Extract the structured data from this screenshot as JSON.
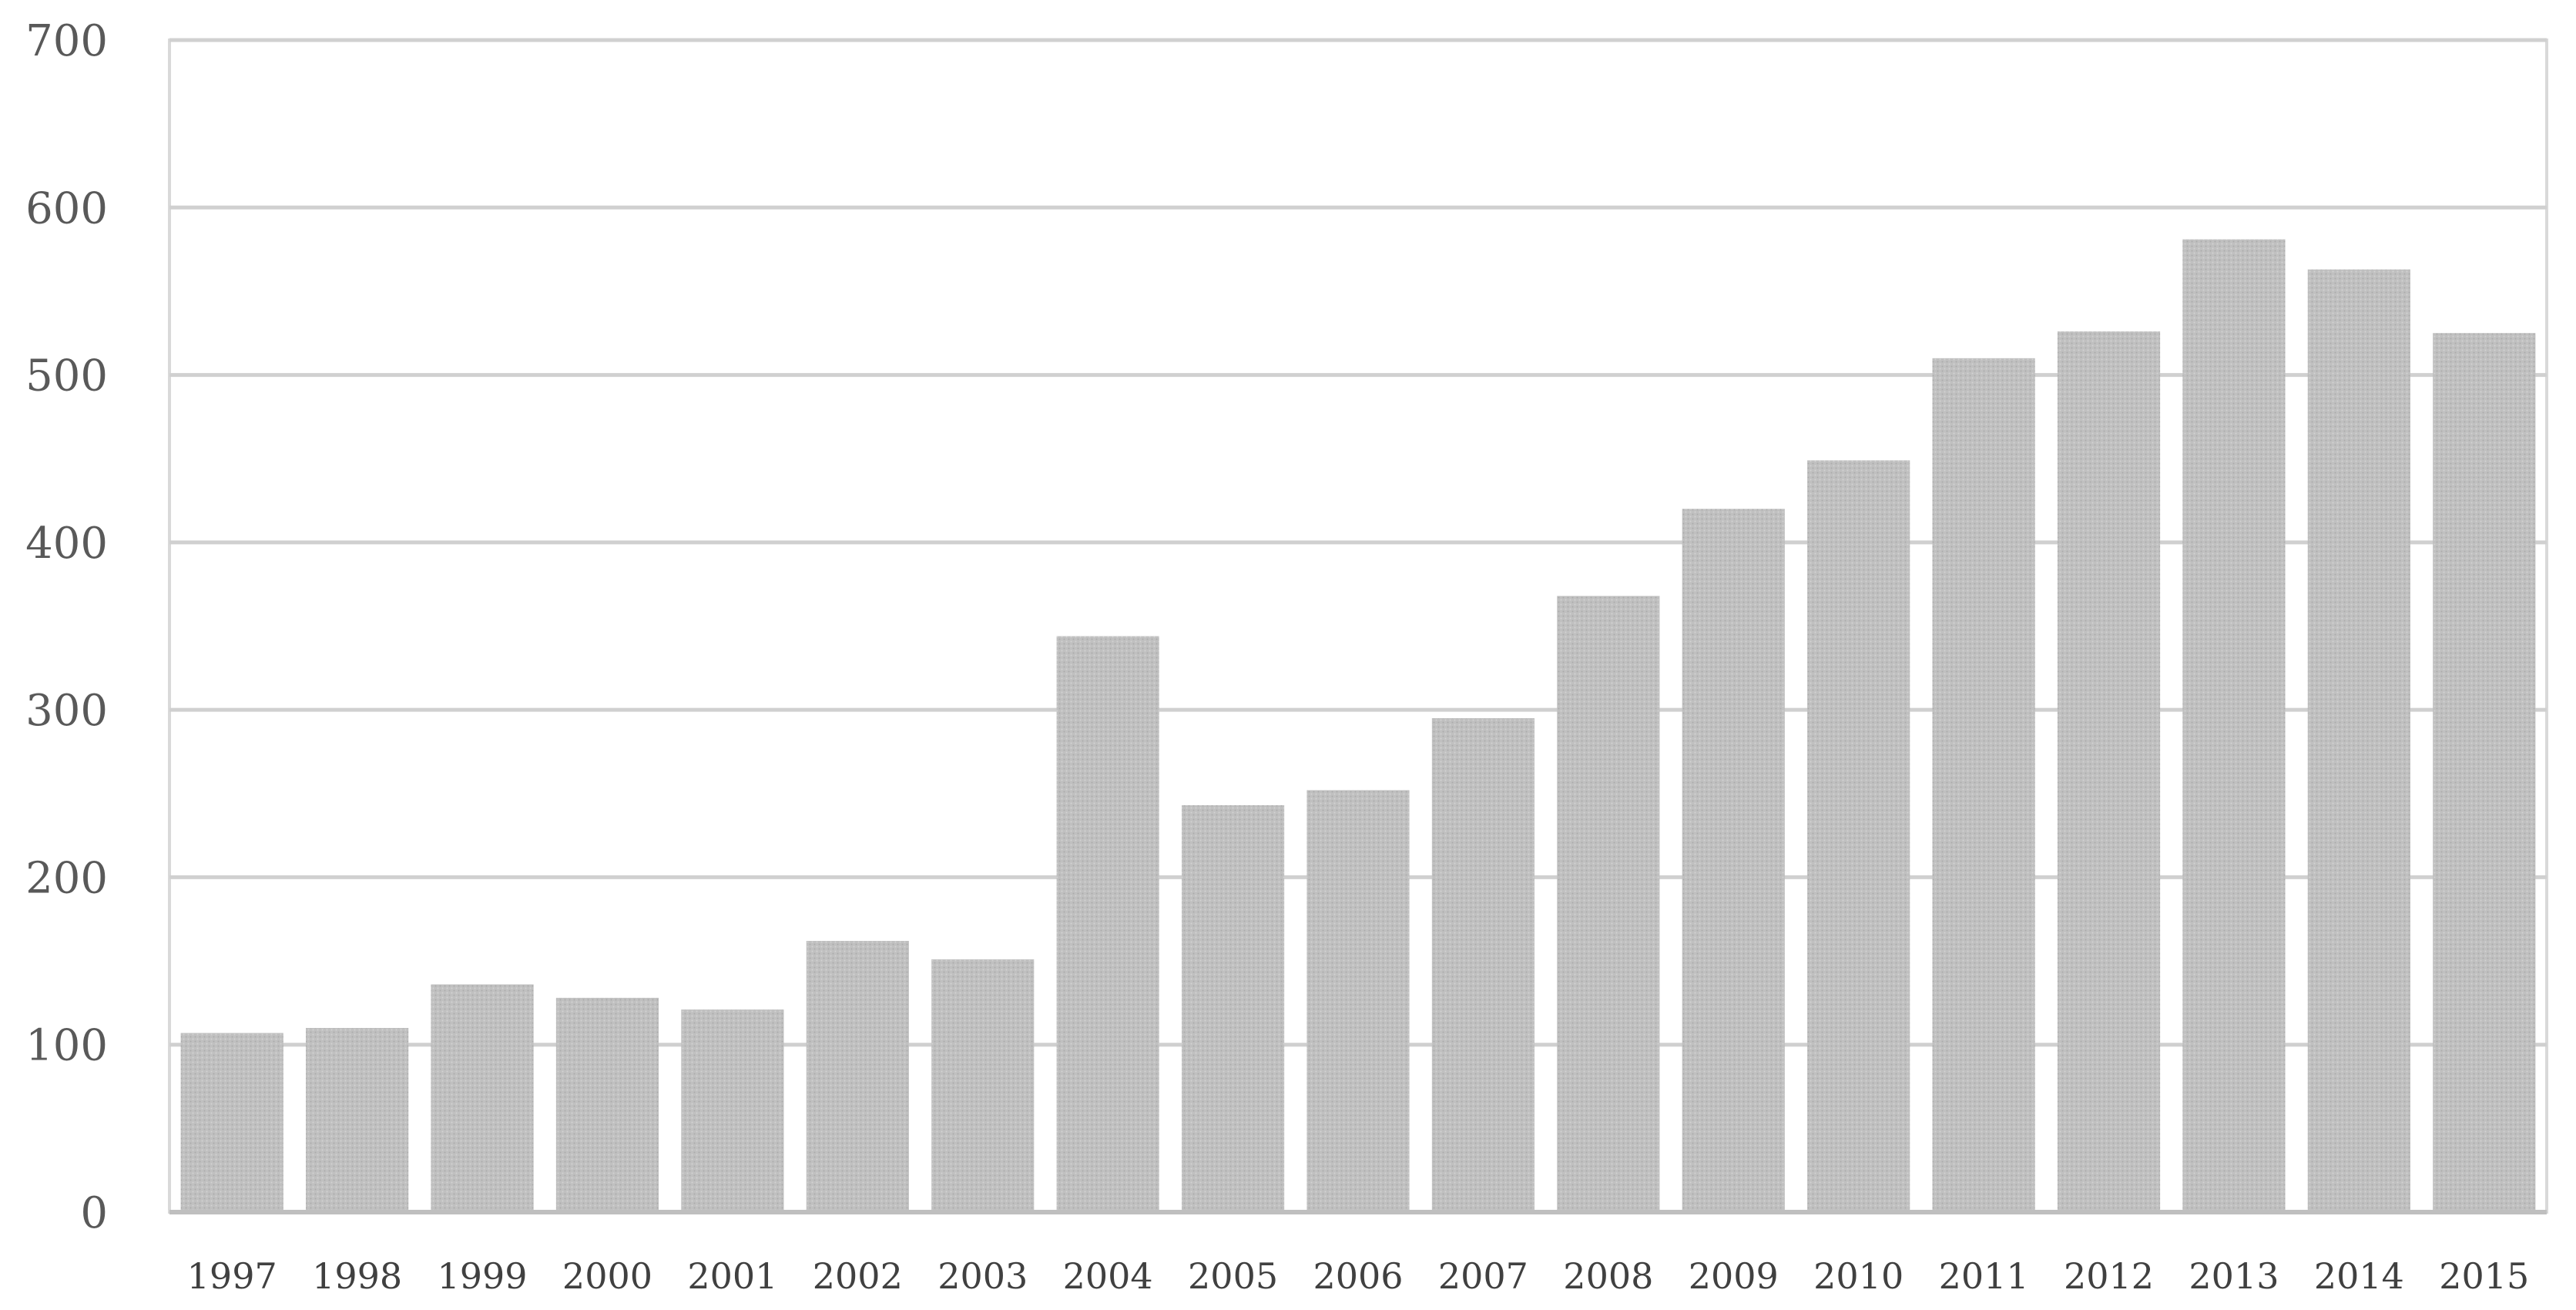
{
  "chart_data": {
    "type": "bar",
    "categories": [
      "1997",
      "1998",
      "1999",
      "2000",
      "2001",
      "2002",
      "2003",
      "2004",
      "2005",
      "2006",
      "2007",
      "2008",
      "2009",
      "2010",
      "2011",
      "2012",
      "2013",
      "2014",
      "2015"
    ],
    "values": [
      107,
      110,
      136,
      128,
      121,
      162,
      151,
      344,
      243,
      252,
      295,
      368,
      420,
      449,
      510,
      526,
      581,
      563,
      525
    ],
    "ylim": [
      0,
      700
    ],
    "yticks": [
      "0",
      "100",
      "200",
      "300",
      "400",
      "500",
      "600",
      "700"
    ],
    "grid": true,
    "colors": {
      "bar": "#bdbdbd",
      "grid": "#d0d0d0"
    }
  }
}
